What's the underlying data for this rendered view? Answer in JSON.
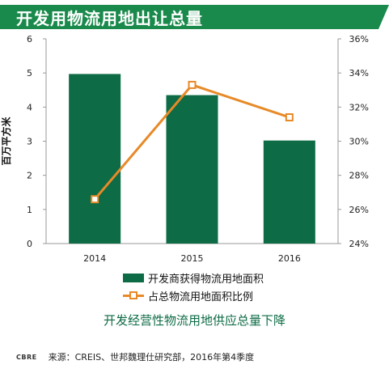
{
  "header": {
    "title": "开发用物流用地出让总量"
  },
  "chart_data": {
    "type": "bar",
    "categories": [
      "2014",
      "2015",
      "2016"
    ],
    "series": [
      {
        "name": "开发商获得物流用地面积",
        "type": "bar",
        "axis": "left",
        "values": [
          4.97,
          4.35,
          3.02
        ]
      },
      {
        "name": "占总物流用地面积比例",
        "type": "line",
        "axis": "right",
        "values": [
          0.266,
          0.333,
          0.314
        ]
      }
    ],
    "ylabel": "百万平方米",
    "ylim": [
      0,
      6
    ],
    "y2lim": [
      0.24,
      0.36
    ],
    "yticks": [
      "0",
      "1",
      "2",
      "3",
      "4",
      "5",
      "6"
    ],
    "y2ticks": [
      "24%",
      "26%",
      "28%",
      "30%",
      "32%",
      "34%",
      "36%"
    ],
    "grid": false,
    "legend_position": "bottom",
    "colors": {
      "bar": "#0d6b45",
      "line": "#e78a28",
      "header": "#1a8a4c"
    }
  },
  "legend": {
    "bar_label": "开发商获得物流用地面积",
    "line_label": "占总物流用地面积比例"
  },
  "subtitle": "开发经营性物流用地供应总量下降",
  "footer": {
    "logo": "CBRE",
    "source": "来源：CREIS、世邦魏理仕研究部，2016年第4季度"
  }
}
